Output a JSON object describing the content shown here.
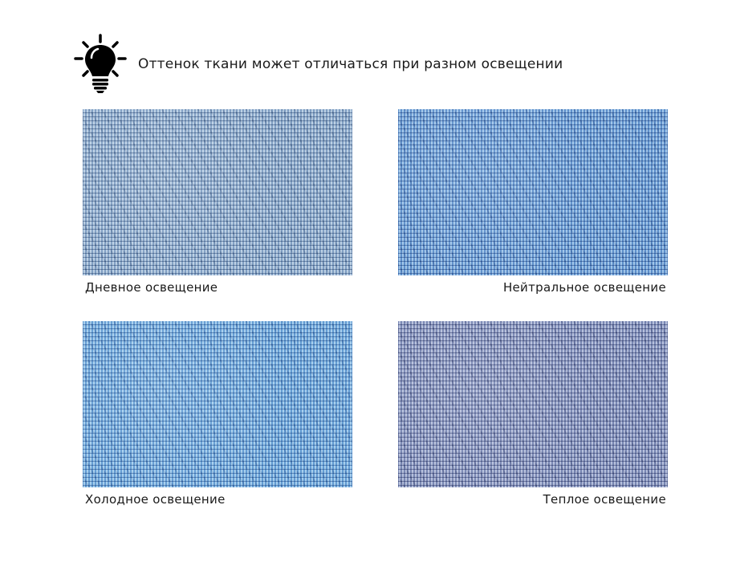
{
  "header": {
    "text": "Оттенок ткани может отличаться при разном освещении",
    "icon": "lightbulb-icon"
  },
  "swatches": [
    {
      "label": "Дневное освещение",
      "color": "#7f9ec2",
      "dark": "#3f5f88",
      "light": "#c6d6e8"
    },
    {
      "label": "Нейтральное освещение",
      "color": "#5d8fca",
      "dark": "#2c568f",
      "light": "#b3cdef"
    },
    {
      "label": "Холодное освещение",
      "color": "#629bd2",
      "dark": "#2d5e96",
      "light": "#b8d6f3"
    },
    {
      "label": "Теплое освещение",
      "color": "#7786b2",
      "dark": "#3a4679",
      "light": "#c3c8e0"
    }
  ]
}
